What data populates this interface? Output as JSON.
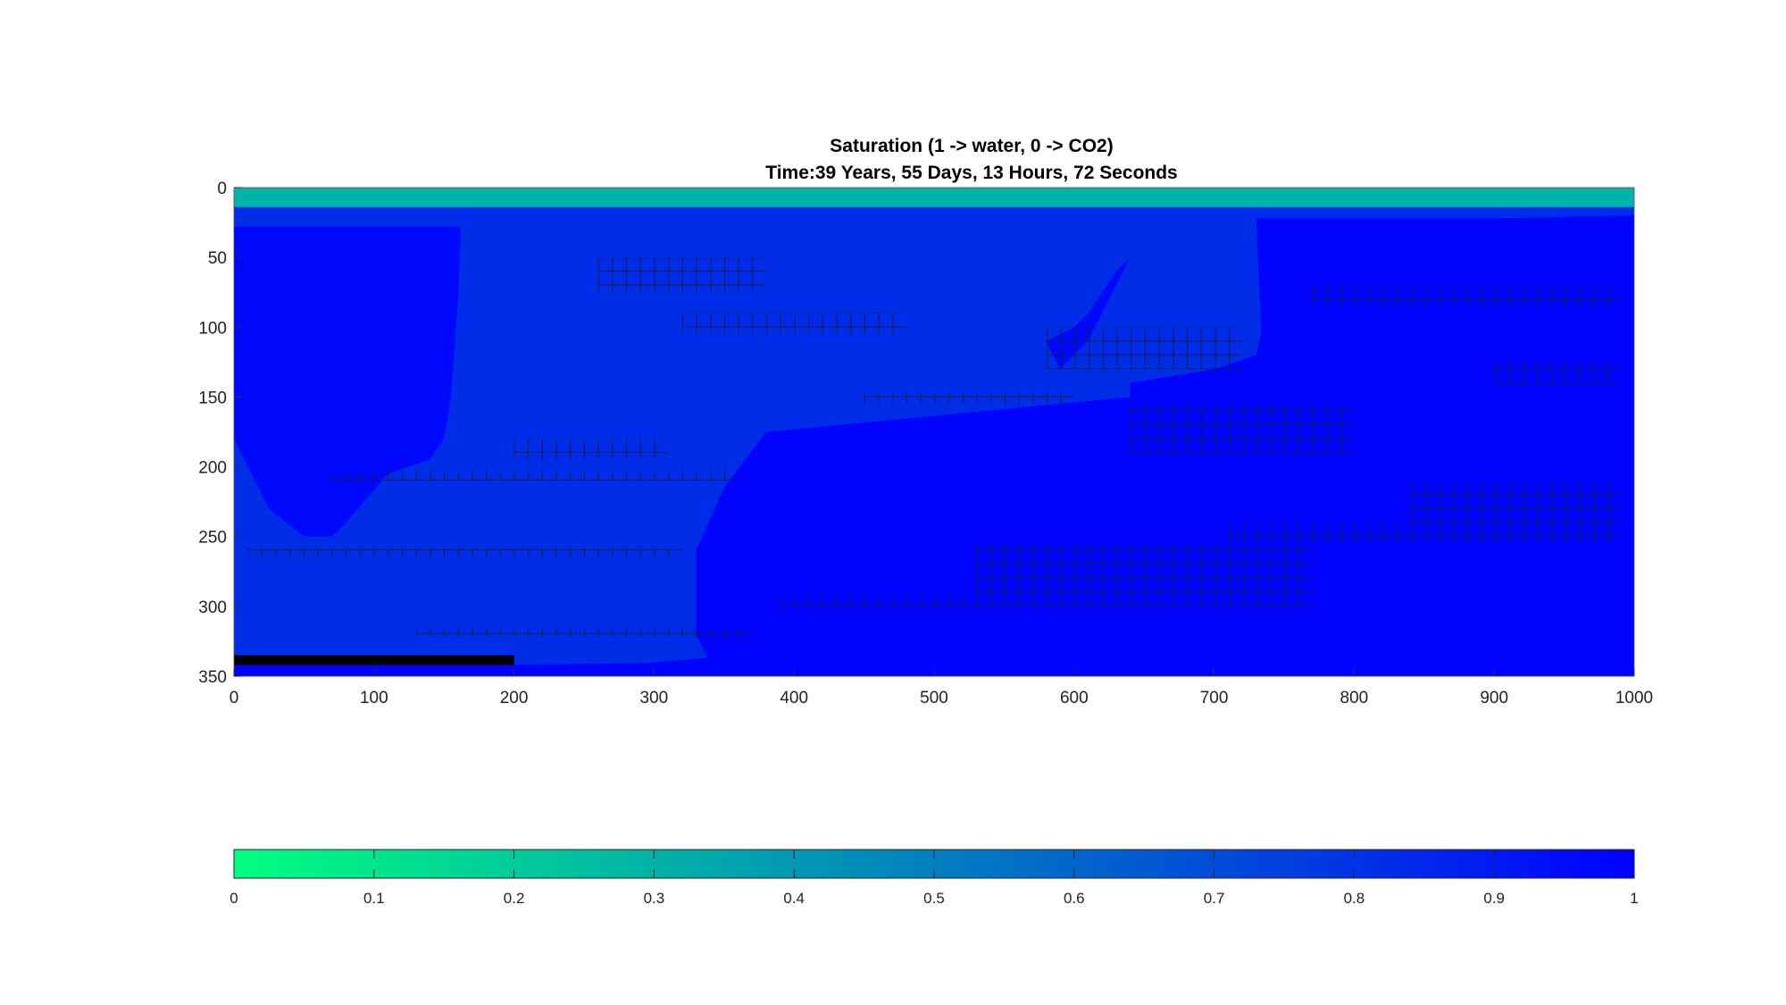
{
  "chart_data": {
    "type": "heatmap",
    "title": [
      "Saturation (1 -> water, 0 -> CO2)",
      "Time:39 Years, 55 Days, 13 Hours, 72 Seconds"
    ],
    "xlim": [
      0,
      1000
    ],
    "ylim": [
      0,
      350
    ],
    "y_reversed": true,
    "x_ticks": [
      0,
      100,
      200,
      300,
      400,
      500,
      600,
      700,
      800,
      900,
      1000
    ],
    "y_ticks": [
      0,
      50,
      100,
      150,
      200,
      250,
      300,
      350
    ],
    "colorbar": {
      "orientation": "horizontal",
      "range": [
        0,
        1
      ],
      "ticks": [
        0,
        0.1,
        0.2,
        0.3,
        0.4,
        0.5,
        0.6,
        0.7,
        0.8,
        0.9,
        1
      ],
      "tick_labels": [
        "0",
        "0.1",
        "0.2",
        "0.3",
        "0.4",
        "0.5",
        "0.6",
        "0.7",
        "0.8",
        "0.9",
        "1"
      ],
      "color_low": "#00ff80",
      "color_high": "#0000ff"
    },
    "regions": [
      {
        "desc": "top CO2 layer",
        "polygon": [
          [
            0,
            0
          ],
          [
            1000,
            0
          ],
          [
            1000,
            14
          ],
          [
            0,
            14
          ]
        ],
        "value": 0.3
      },
      {
        "desc": "transition strip",
        "polygon": [
          [
            0,
            14
          ],
          [
            1000,
            14
          ],
          [
            1000,
            20
          ],
          [
            0,
            20
          ]
        ],
        "value": 0.82
      },
      {
        "desc": "central plume",
        "polygon": [
          [
            0,
            20
          ],
          [
            1000,
            20
          ],
          [
            750,
            25
          ],
          [
            730,
            120
          ],
          [
            700,
            130
          ],
          [
            640,
            140
          ],
          [
            640,
            150
          ],
          [
            380,
            175
          ],
          [
            350,
            215
          ],
          [
            330,
            260
          ],
          [
            330,
            320
          ],
          [
            340,
            340
          ],
          [
            180,
            342
          ],
          [
            0,
            342
          ]
        ],
        "value": 0.82
      },
      {
        "desc": "left channel",
        "polygon": [
          [
            0,
            28
          ],
          [
            162,
            28
          ],
          [
            160,
            80
          ],
          [
            155,
            150
          ],
          [
            150,
            180
          ],
          [
            140,
            195
          ],
          [
            110,
            205
          ],
          [
            80,
            240
          ],
          [
            70,
            250
          ],
          [
            50,
            250
          ],
          [
            25,
            230
          ],
          [
            10,
            200
          ],
          [
            0,
            180
          ]
        ],
        "value": 0.97
      },
      {
        "desc": "upper-middle tongue",
        "polygon": [
          [
            580,
            110
          ],
          [
            600,
            100
          ],
          [
            610,
            90
          ],
          [
            620,
            75
          ],
          [
            630,
            60
          ],
          [
            640,
            50
          ],
          [
            610,
            110
          ],
          [
            590,
            130
          ]
        ],
        "value": 0.97
      },
      {
        "desc": "right water zone",
        "polygon": [
          [
            730,
            22
          ],
          [
            1000,
            22
          ],
          [
            1000,
            350
          ],
          [
            230,
            350
          ],
          [
            300,
            340
          ],
          [
            420,
            330
          ],
          [
            450,
            310
          ],
          [
            460,
            250
          ],
          [
            490,
            220
          ],
          [
            560,
            200
          ],
          [
            640,
            175
          ],
          [
            700,
            160
          ],
          [
            735,
            135
          ]
        ],
        "value": 0.99
      }
    ],
    "low_permeability_lenses": [
      {
        "x": [
          260,
          380
        ],
        "y": [
          50,
          75
        ]
      },
      {
        "x": [
          320,
          480
        ],
        "y": [
          90,
          105
        ]
      },
      {
        "x": [
          770,
          990
        ],
        "y": [
          70,
          85
        ]
      },
      {
        "x": [
          580,
          720
        ],
        "y": [
          100,
          130
        ]
      },
      {
        "x": [
          900,
          990
        ],
        "y": [
          125,
          140
        ]
      },
      {
        "x": [
          450,
          600
        ],
        "y": [
          147,
          155
        ]
      },
      {
        "x": [
          640,
          800
        ],
        "y": [
          155,
          190
        ]
      },
      {
        "x": [
          200,
          310
        ],
        "y": [
          180,
          195
        ]
      },
      {
        "x": [
          70,
          360
        ],
        "y": [
          202,
          210
        ]
      },
      {
        "x": [
          710,
          990
        ],
        "y": [
          240,
          255
        ]
      },
      {
        "x": [
          840,
          990
        ],
        "y": [
          210,
          245
        ]
      },
      {
        "x": [
          10,
          320
        ],
        "y": [
          258,
          266
        ]
      },
      {
        "x": [
          530,
          770
        ],
        "y": [
          255,
          300
        ]
      },
      {
        "x": [
          390,
          650
        ],
        "y": [
          292,
          300
        ]
      },
      {
        "x": [
          130,
          370
        ],
        "y": [
          315,
          322
        ]
      }
    ],
    "well": {
      "x": [
        0,
        200
      ],
      "y": [
        335,
        342
      ],
      "color": "#000000"
    }
  }
}
